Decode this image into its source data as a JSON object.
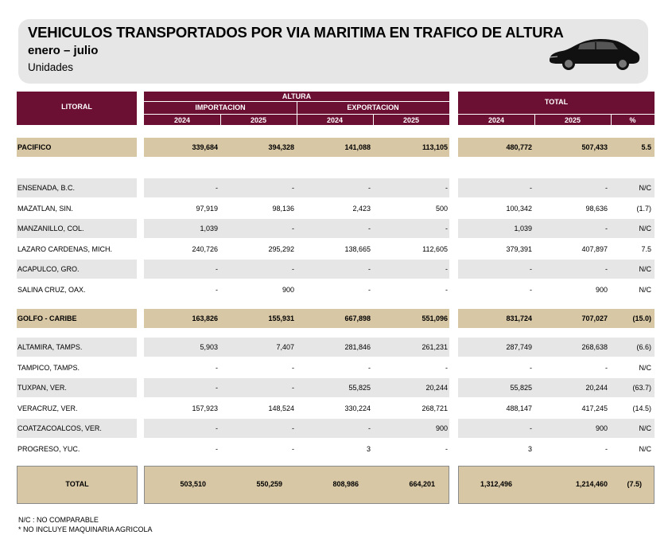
{
  "header": {
    "title": "VEHICULOS TRANSPORTADOS POR VIA MARITIMA EN TRAFICO DE ALTURA",
    "subtitle": "enero – julio",
    "units": "Unidades",
    "icon": "car-icon"
  },
  "table_header": {
    "litoral": "LITORAL",
    "altura": "ALTURA",
    "importacion": "IMPORTACION",
    "exportacion": "EXPORTACION",
    "total": "TOTAL",
    "years": [
      "2024",
      "2025",
      "2024",
      "2025",
      "2024",
      "2025",
      "%"
    ]
  },
  "pacifico": {
    "label": "PACIFICO",
    "values": [
      "339,684",
      "394,328",
      "141,088",
      "113,105",
      "480,772",
      "507,433",
      "5.5"
    ],
    "ports": [
      {
        "label": "ENSENADA, B.C.",
        "values": [
          "-",
          "-",
          "-",
          "-",
          "-",
          "-",
          "N/C"
        ]
      },
      {
        "label": "MAZATLAN, SIN.",
        "values": [
          "97,919",
          "98,136",
          "2,423",
          "500",
          "100,342",
          "98,636",
          "(1.7)"
        ]
      },
      {
        "label": "MANZANILLO, COL.",
        "values": [
          "1,039",
          "-",
          "-",
          "-",
          "1,039",
          "-",
          "N/C"
        ]
      },
      {
        "label": "LAZARO CARDENAS, MICH.",
        "values": [
          "240,726",
          "295,292",
          "138,665",
          "112,605",
          "379,391",
          "407,897",
          "7.5"
        ]
      },
      {
        "label": "ACAPULCO, GRO.",
        "values": [
          "-",
          "-",
          "-",
          "-",
          "-",
          "-",
          "N/C"
        ]
      },
      {
        "label": "SALINA CRUZ, OAX.",
        "values": [
          "-",
          "900",
          "-",
          "-",
          "-",
          "900",
          "N/C"
        ]
      }
    ]
  },
  "golfo": {
    "label": "GOLFO - CARIBE",
    "values": [
      "163,826",
      "155,931",
      "667,898",
      "551,096",
      "831,724",
      "707,027",
      "(15.0)"
    ],
    "ports": [
      {
        "label": "ALTAMIRA, TAMPS.",
        "values": [
          "5,903",
          "7,407",
          "281,846",
          "261,231",
          "287,749",
          "268,638",
          "(6.6)"
        ]
      },
      {
        "label": "TAMPICO, TAMPS.",
        "values": [
          "-",
          "-",
          "-",
          "-",
          "-",
          "-",
          "N/C"
        ]
      },
      {
        "label": "TUXPAN, VER.",
        "values": [
          "-",
          "-",
          "55,825",
          "20,244",
          "55,825",
          "20,244",
          "(63.7)"
        ]
      },
      {
        "label": "VERACRUZ, VER.",
        "values": [
          "157,923",
          "148,524",
          "330,224",
          "268,721",
          "488,147",
          "417,245",
          "(14.5)"
        ]
      },
      {
        "label": "COATZACOALCOS, VER.",
        "values": [
          "-",
          "-",
          "-",
          "900",
          "-",
          "900",
          "N/C"
        ]
      },
      {
        "label": "PROGRESO, YUC.",
        "values": [
          "-",
          "-",
          "3",
          "-",
          "3",
          "-",
          "N/C"
        ]
      }
    ]
  },
  "total": {
    "label": "TOTAL",
    "values": [
      "503,510",
      "550,259",
      "808,986",
      "664,201",
      "1,312,496",
      "1,214,460",
      "(7.5)"
    ]
  },
  "notes": [
    "N/C : NO COMPARABLE",
    "* NO INCLUYE  MAQUINARIA AGRICOLA"
  ],
  "colors": {
    "header": "#6b0f33",
    "section": "#d8c7a4",
    "stripe": "#e6e6e6"
  }
}
